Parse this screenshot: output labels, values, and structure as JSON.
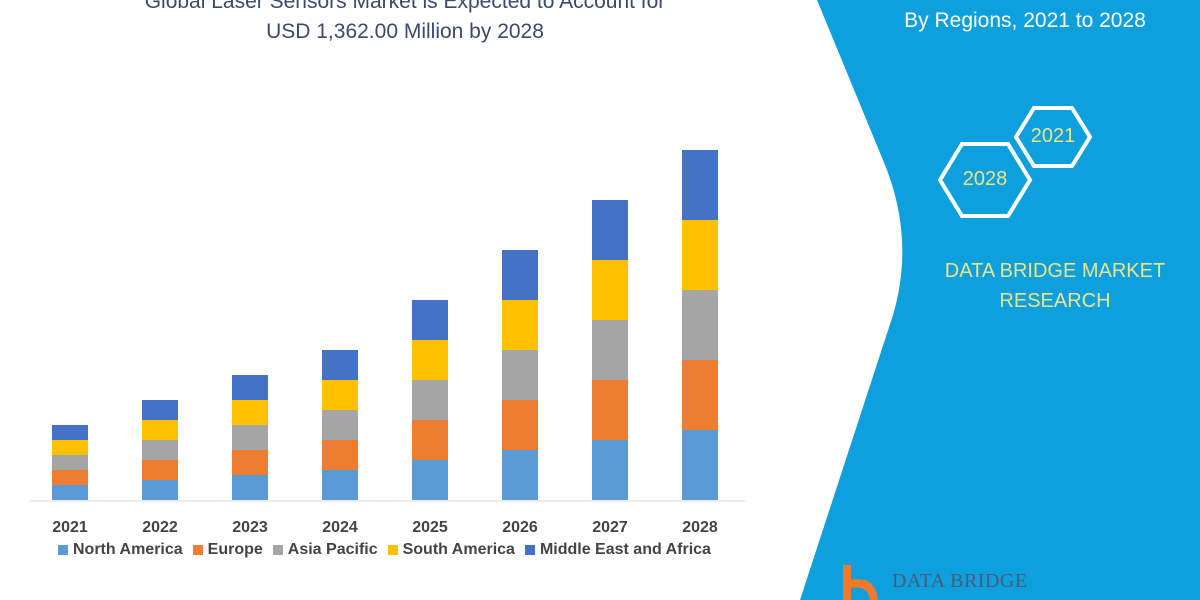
{
  "header": {
    "title_line1": "Global Laser Sensors Market is Expected to Account for",
    "title_line2": "USD 1,362.00 Million by 2028",
    "subtitle": "By Regions, 2021 to 2028"
  },
  "panel": {
    "hex_2021": "2021",
    "hex_2028": "2028",
    "brand": "DATA BRIDGE MARKET RESEARCH",
    "logo_text": "DATA BRIDGE",
    "panel_color": "#0ea0dc",
    "accent_text_color": "#e8e58a"
  },
  "chart_data": {
    "type": "bar",
    "stacked": true,
    "categories": [
      "2021",
      "2022",
      "2023",
      "2024",
      "2025",
      "2026",
      "2027",
      "2028"
    ],
    "series": [
      {
        "name": "North America",
        "color": "#5b9bd5",
        "values": [
          15,
          20,
          25,
          30,
          40,
          50,
          60,
          70
        ]
      },
      {
        "name": "Europe",
        "color": "#ed7d31",
        "values": [
          15,
          20,
          25,
          30,
          40,
          50,
          60,
          70
        ]
      },
      {
        "name": "Asia Pacific",
        "color": "#a5a5a5",
        "values": [
          15,
          20,
          25,
          30,
          40,
          50,
          60,
          70
        ]
      },
      {
        "name": "South America",
        "color": "#ffc000",
        "values": [
          15,
          20,
          25,
          30,
          40,
          50,
          60,
          70
        ]
      },
      {
        "name": "Middle East and Africa",
        "color": "#4472c4",
        "values": [
          15,
          20,
          25,
          30,
          40,
          50,
          60,
          70
        ]
      }
    ],
    "ylim": [
      0,
      350
    ],
    "grid": false,
    "legend": "bottom"
  }
}
